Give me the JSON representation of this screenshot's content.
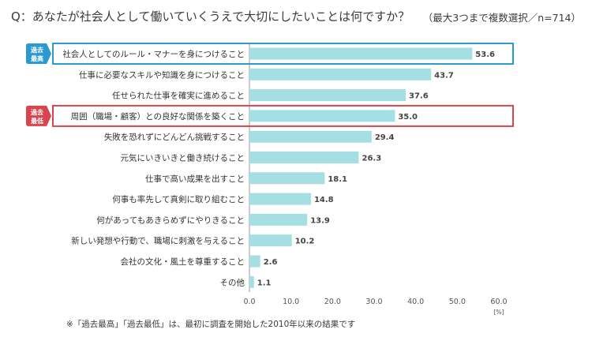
{
  "title": "Q：あなたが社会人として働いていくうえで大切にしたいことは何ですか？",
  "subtitle": "（最大3つまで複数選択／n=714）",
  "footnote": "※「過去最高」「過去最低」は、最初に調査を開始した2010年以来の結果です",
  "colors": {
    "bar": "#a5dfe3",
    "high": "#2b9ad0",
    "low": "#d9454e",
    "axis": "#999999",
    "text": "#333333"
  },
  "badges": {
    "high": "過去最高",
    "low": "過去最低"
  },
  "chart_data": {
    "type": "bar",
    "orientation": "horizontal",
    "categories": [
      "社会人としてのルール・マナーを身につけること",
      "仕事に必要なスキルや知識を身につけること",
      "任せられた仕事を確実に進めること",
      "周囲（職場・顧客）との良好な関係を築くこと",
      "失敗を恐れずにどんどん挑戦すること",
      "元気にいきいきと働き続けること",
      "仕事で高い成果を出すこと",
      "何事も率先して真剣に取り組むこと",
      "何があってもあきらめずにやりきること",
      "新しい発想や行動で、職場に刺激を与えること",
      "会社の文化・風土を尊重すること",
      "その他"
    ],
    "values": [
      53.6,
      43.7,
      37.6,
      35.0,
      29.4,
      26.3,
      18.1,
      14.8,
      13.9,
      10.2,
      2.6,
      1.1
    ],
    "value_labels": [
      "53.6",
      "43.7",
      "37.6",
      "35.0",
      "29.4",
      "26.3",
      "18.1",
      "14.8",
      "13.9",
      "10.2",
      "2.6",
      "1.1"
    ],
    "xlim": [
      0,
      60
    ],
    "ticks": [
      "0.0",
      "10.0",
      "20.0",
      "30.0",
      "40.0",
      "50.0",
      "60.0"
    ],
    "unit": "[%]",
    "highlights": [
      {
        "index": 0,
        "type": "high"
      },
      {
        "index": 3,
        "type": "low"
      }
    ]
  }
}
